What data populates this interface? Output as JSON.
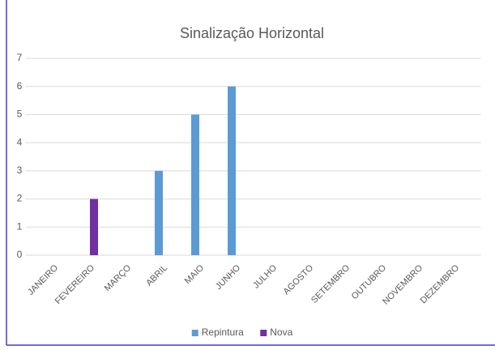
{
  "chart_data": {
    "type": "bar",
    "title": "Sinalização Horizontal",
    "categories": [
      "JANEIRO",
      "FEVEREIRO",
      "MARÇO",
      "ABRIL",
      "MAIO",
      "JUNHO",
      "JULHO",
      "AGOSTO",
      "SETEMBRO",
      "OUTUBRO",
      "NOVEMBRO",
      "DEZEMBRO"
    ],
    "series": [
      {
        "name": "Repintura",
        "color": "#5b9bd5",
        "values": [
          0,
          0,
          0,
          3,
          5,
          6,
          0,
          0,
          0,
          0,
          0,
          0
        ]
      },
      {
        "name": "Nova",
        "color": "#7030a0",
        "values": [
          0,
          2,
          0,
          0,
          0,
          0,
          0,
          0,
          0,
          0,
          0,
          0
        ]
      }
    ],
    "ylim": [
      0,
      7
    ],
    "yticks": [
      0,
      1,
      2,
      3,
      4,
      5,
      6,
      7
    ],
    "grid": true,
    "legend": "bottom"
  }
}
